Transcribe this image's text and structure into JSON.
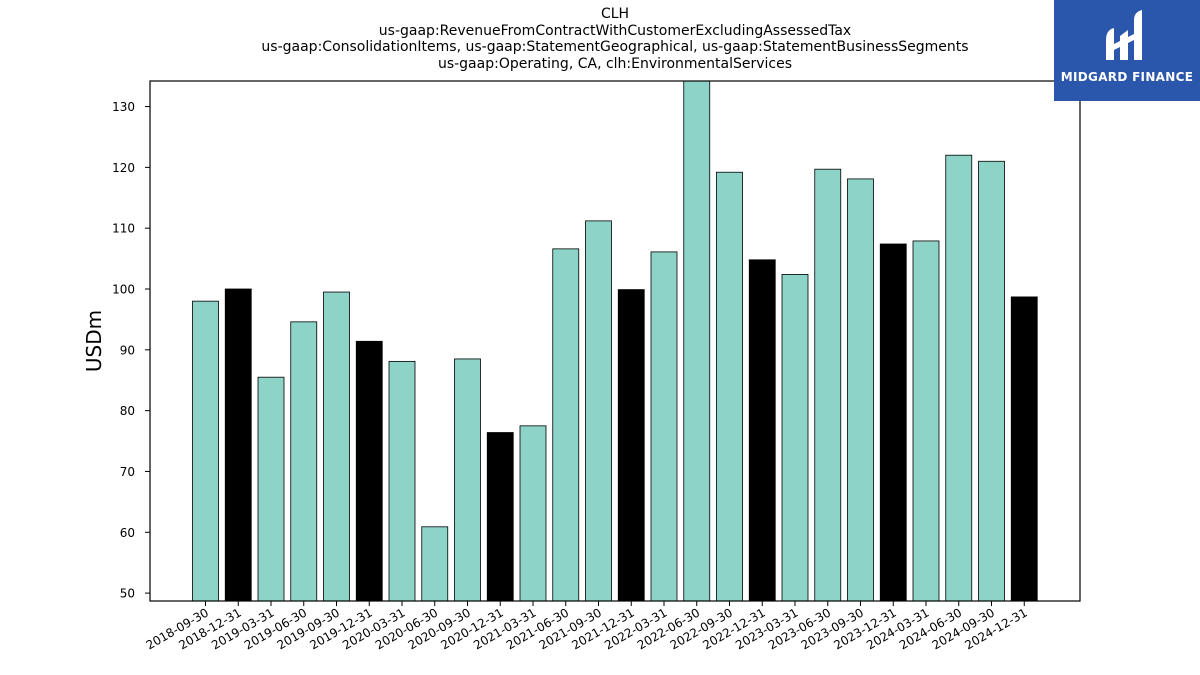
{
  "chart_data": {
    "type": "bar",
    "title_lines": [
      "CLH",
      "us-gaap:RevenueFromContractWithCustomerExcludingAssessedTax",
      "us-gaap:ConsolidationItems, us-gaap:StatementGeographical, us-gaap:StatementBusinessSegments",
      "us-gaap:Operating, CA, clh:EnvironmentalServices"
    ],
    "xlabel": "",
    "ylabel": "USDm",
    "ylim": [
      48.7,
      134.2
    ],
    "yticks": [
      50,
      60,
      70,
      80,
      90,
      100,
      110,
      120,
      130
    ],
    "grid": false,
    "categories": [
      "2018-09-30",
      "2018-12-31",
      "2019-03-31",
      "2019-06-30",
      "2019-09-30",
      "2019-12-31",
      "2020-03-31",
      "2020-06-30",
      "2020-09-30",
      "2020-12-31",
      "2021-03-31",
      "2021-06-30",
      "2021-09-30",
      "2021-12-31",
      "2022-03-31",
      "2022-06-30",
      "2022-09-30",
      "2022-12-31",
      "2023-03-31",
      "2023-06-30",
      "2023-09-30",
      "2023-12-31",
      "2024-03-31",
      "2024-06-30",
      "2024-09-30",
      "2024-12-31"
    ],
    "values": [
      98.0,
      100.0,
      85.5,
      94.6,
      99.5,
      91.4,
      88.1,
      60.9,
      88.5,
      76.4,
      77.5,
      106.6,
      111.2,
      99.9,
      106.1,
      134.5,
      119.2,
      104.8,
      102.4,
      119.7,
      118.1,
      107.4,
      107.9,
      122.0,
      121.0,
      98.7
    ],
    "colors": [
      "#8dd3c7",
      "#000000",
      "#8dd3c7",
      "#8dd3c7",
      "#8dd3c7",
      "#000000",
      "#8dd3c7",
      "#8dd3c7",
      "#8dd3c7",
      "#000000",
      "#8dd3c7",
      "#8dd3c7",
      "#8dd3c7",
      "#000000",
      "#8dd3c7",
      "#8dd3c7",
      "#8dd3c7",
      "#000000",
      "#8dd3c7",
      "#8dd3c7",
      "#8dd3c7",
      "#000000",
      "#8dd3c7",
      "#8dd3c7",
      "#8dd3c7",
      "#000000"
    ]
  },
  "logo": {
    "text": "MIDGARD FINANCE",
    "background": "#2a57ab"
  }
}
